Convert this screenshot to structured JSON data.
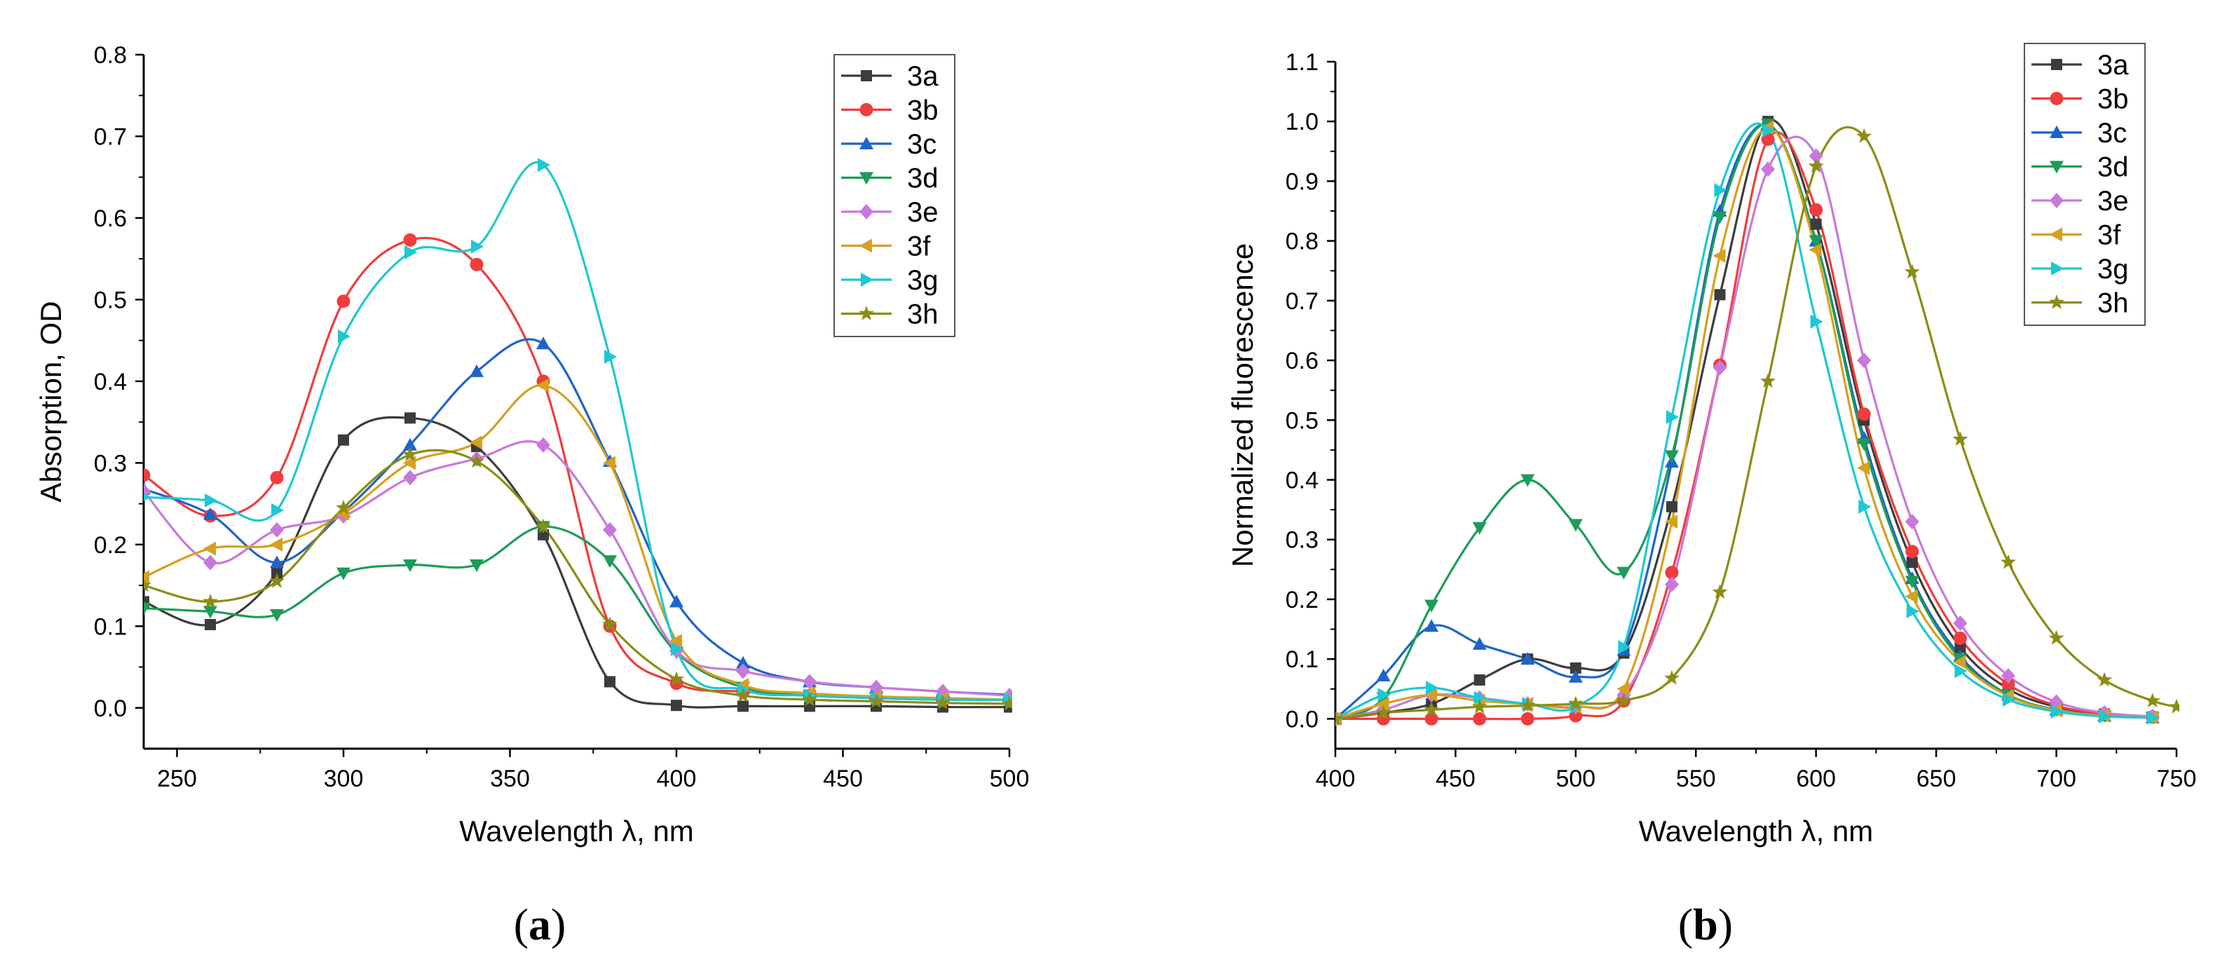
{
  "chart_data": [
    {
      "type": "line",
      "panel_label": "a",
      "xlabel": "Wavelength λ, nm",
      "ylabel": "Absorption, OD",
      "xlim": [
        240,
        500
      ],
      "ylim": [
        -0.05,
        0.8
      ],
      "xticks": [
        250,
        300,
        350,
        400,
        450,
        500
      ],
      "yticks": [
        0.0,
        0.1,
        0.2,
        0.3,
        0.4,
        0.5,
        0.6,
        0.7,
        0.8
      ],
      "legend": "top-right",
      "series": [
        {
          "name": "3a",
          "color": "#3c3c3c",
          "marker": "square",
          "x": [
            240,
            260,
            280,
            300,
            320,
            340,
            360,
            380,
            400,
            420,
            440,
            460,
            480,
            500
          ],
          "y": [
            0.13,
            0.102,
            0.165,
            0.328,
            0.355,
            0.32,
            0.212,
            0.032,
            0.003,
            0.002,
            0.002,
            0.002,
            0.001,
            0.001
          ]
        },
        {
          "name": "3b",
          "color": "#f03c3c",
          "marker": "circle",
          "x": [
            240,
            260,
            280,
            300,
            320,
            340,
            360,
            380,
            400,
            420,
            440,
            460,
            480,
            500
          ],
          "y": [
            0.285,
            0.235,
            0.282,
            0.498,
            0.573,
            0.543,
            0.4,
            0.1,
            0.03,
            0.02,
            0.015,
            0.012,
            0.01,
            0.01
          ]
        },
        {
          "name": "3c",
          "color": "#1e64c8",
          "marker": "triangle-up",
          "x": [
            240,
            260,
            280,
            300,
            320,
            340,
            360,
            380,
            400,
            420,
            440,
            460,
            480,
            500
          ],
          "y": [
            0.268,
            0.237,
            0.178,
            0.24,
            0.322,
            0.412,
            0.446,
            0.302,
            0.13,
            0.055,
            0.032,
            0.025,
            0.02,
            0.016
          ]
        },
        {
          "name": "3d",
          "color": "#1e9b5a",
          "marker": "triangle-down",
          "x": [
            240,
            260,
            280,
            300,
            320,
            340,
            360,
            380,
            400,
            420,
            440,
            460,
            480,
            500
          ],
          "y": [
            0.122,
            0.118,
            0.114,
            0.165,
            0.175,
            0.175,
            0.222,
            0.18,
            0.068,
            0.025,
            0.015,
            0.012,
            0.01,
            0.01
          ]
        },
        {
          "name": "3e",
          "color": "#c878dc",
          "marker": "diamond",
          "x": [
            240,
            260,
            280,
            300,
            320,
            340,
            360,
            380,
            400,
            420,
            440,
            460,
            480,
            500
          ],
          "y": [
            0.265,
            0.178,
            0.218,
            0.235,
            0.282,
            0.305,
            0.322,
            0.218,
            0.07,
            0.045,
            0.032,
            0.025,
            0.02,
            0.015
          ]
        },
        {
          "name": "3f",
          "color": "#d7a01e",
          "marker": "triangle-left",
          "x": [
            240,
            260,
            280,
            300,
            320,
            340,
            360,
            380,
            400,
            420,
            440,
            460,
            480,
            500
          ],
          "y": [
            0.16,
            0.195,
            0.2,
            0.238,
            0.3,
            0.325,
            0.395,
            0.3,
            0.082,
            0.028,
            0.018,
            0.014,
            0.012,
            0.01
          ]
        },
        {
          "name": "3g",
          "color": "#1ec8d2",
          "marker": "triangle-right",
          "x": [
            240,
            260,
            280,
            300,
            320,
            340,
            360,
            380,
            400,
            420,
            440,
            460,
            480,
            500
          ],
          "y": [
            0.258,
            0.254,
            0.242,
            0.455,
            0.558,
            0.565,
            0.665,
            0.43,
            0.072,
            0.022,
            0.015,
            0.012,
            0.01,
            0.01
          ]
        },
        {
          "name": "3h",
          "color": "#8c8c14",
          "marker": "star",
          "x": [
            240,
            260,
            280,
            300,
            320,
            340,
            360,
            380,
            400,
            420,
            440,
            460,
            480,
            500
          ],
          "y": [
            0.15,
            0.13,
            0.155,
            0.245,
            0.31,
            0.302,
            0.222,
            0.102,
            0.035,
            0.015,
            0.01,
            0.008,
            0.006,
            0.005
          ]
        }
      ]
    },
    {
      "type": "line",
      "panel_label": "b",
      "xlabel": "Wavelength λ, nm",
      "ylabel": "Normalized fluorescence",
      "xlim": [
        400,
        750
      ],
      "ylim": [
        -0.05,
        1.1
      ],
      "xticks": [
        400,
        450,
        500,
        550,
        600,
        650,
        700,
        750
      ],
      "yticks": [
        0.0,
        0.1,
        0.2,
        0.3,
        0.4,
        0.5,
        0.6,
        0.7,
        0.8,
        0.9,
        1.0,
        1.1
      ],
      "legend": "top-right",
      "series": [
        {
          "name": "3a",
          "color": "#3c3c3c",
          "marker": "square",
          "x": [
            400,
            420,
            440,
            460,
            480,
            500,
            520,
            540,
            560,
            580,
            600,
            620,
            640,
            660,
            680,
            700,
            720,
            740
          ],
          "y": [
            0.0,
            0.01,
            0.025,
            0.065,
            0.1,
            0.085,
            0.11,
            0.355,
            0.71,
            1.0,
            0.828,
            0.5,
            0.262,
            0.12,
            0.05,
            0.02,
            0.008,
            0.003
          ]
        },
        {
          "name": "3b",
          "color": "#f03c3c",
          "marker": "circle",
          "x": [
            400,
            420,
            440,
            460,
            480,
            500,
            520,
            540,
            560,
            580,
            600,
            620,
            640,
            660,
            680,
            700,
            720,
            740
          ],
          "y": [
            0.0,
            0.0,
            0.0,
            0.0,
            0.0,
            0.005,
            0.03,
            0.245,
            0.592,
            0.97,
            0.852,
            0.51,
            0.28,
            0.135,
            0.058,
            0.022,
            0.008,
            0.003
          ]
        },
        {
          "name": "3c",
          "color": "#1e64c8",
          "marker": "triangle-up",
          "x": [
            400,
            420,
            440,
            460,
            480,
            500,
            520,
            540,
            560,
            580,
            600,
            620,
            640,
            660,
            680,
            700,
            720,
            740
          ],
          "y": [
            0.0,
            0.072,
            0.155,
            0.125,
            0.1,
            0.07,
            0.115,
            0.43,
            0.85,
            0.995,
            0.8,
            0.47,
            0.235,
            0.105,
            0.04,
            0.015,
            0.005,
            0.002
          ]
        },
        {
          "name": "3d",
          "color": "#1e9b5a",
          "marker": "triangle-down",
          "x": [
            400,
            420,
            440,
            460,
            480,
            500,
            520,
            540,
            560,
            580,
            600,
            620,
            640,
            660,
            680,
            700,
            720,
            740
          ],
          "y": [
            0.0,
            0.035,
            0.19,
            0.32,
            0.4,
            0.325,
            0.245,
            0.44,
            0.84,
            0.995,
            0.8,
            0.46,
            0.23,
            0.1,
            0.04,
            0.015,
            0.005,
            0.002
          ]
        },
        {
          "name": "3e",
          "color": "#c878dc",
          "marker": "diamond",
          "x": [
            400,
            420,
            440,
            460,
            480,
            500,
            520,
            540,
            560,
            580,
            600,
            620,
            640,
            660,
            680,
            700,
            720,
            740
          ],
          "y": [
            0.0,
            0.015,
            0.04,
            0.035,
            0.025,
            0.02,
            0.04,
            0.225,
            0.588,
            0.92,
            0.942,
            0.6,
            0.33,
            0.16,
            0.072,
            0.028,
            0.01,
            0.004
          ]
        },
        {
          "name": "3f",
          "color": "#d7a01e",
          "marker": "triangle-left",
          "x": [
            400,
            420,
            440,
            460,
            480,
            500,
            520,
            540,
            560,
            580,
            600,
            620,
            640,
            660,
            680,
            700,
            720,
            740
          ],
          "y": [
            0.0,
            0.025,
            0.04,
            0.03,
            0.025,
            0.02,
            0.05,
            0.33,
            0.775,
            0.99,
            0.785,
            0.42,
            0.205,
            0.095,
            0.038,
            0.014,
            0.005,
            0.002
          ]
        },
        {
          "name": "3g",
          "color": "#1ec8d2",
          "marker": "triangle-right",
          "x": [
            400,
            420,
            440,
            460,
            480,
            500,
            520,
            540,
            560,
            580,
            600,
            620,
            640,
            660,
            680,
            700,
            720,
            740
          ],
          "y": [
            0.0,
            0.04,
            0.052,
            0.035,
            0.025,
            0.02,
            0.12,
            0.505,
            0.885,
            0.985,
            0.665,
            0.355,
            0.18,
            0.08,
            0.032,
            0.012,
            0.004,
            0.002
          ]
        },
        {
          "name": "3h",
          "color": "#8c8c14",
          "marker": "star",
          "x": [
            400,
            420,
            440,
            460,
            480,
            500,
            520,
            540,
            560,
            580,
            600,
            620,
            640,
            660,
            680,
            700,
            720,
            740,
            750
          ],
          "y": [
            0.0,
            0.01,
            0.015,
            0.02,
            0.022,
            0.025,
            0.03,
            0.068,
            0.212,
            0.565,
            0.925,
            0.975,
            0.748,
            0.468,
            0.262,
            0.135,
            0.065,
            0.03,
            0.02
          ]
        }
      ]
    }
  ]
}
